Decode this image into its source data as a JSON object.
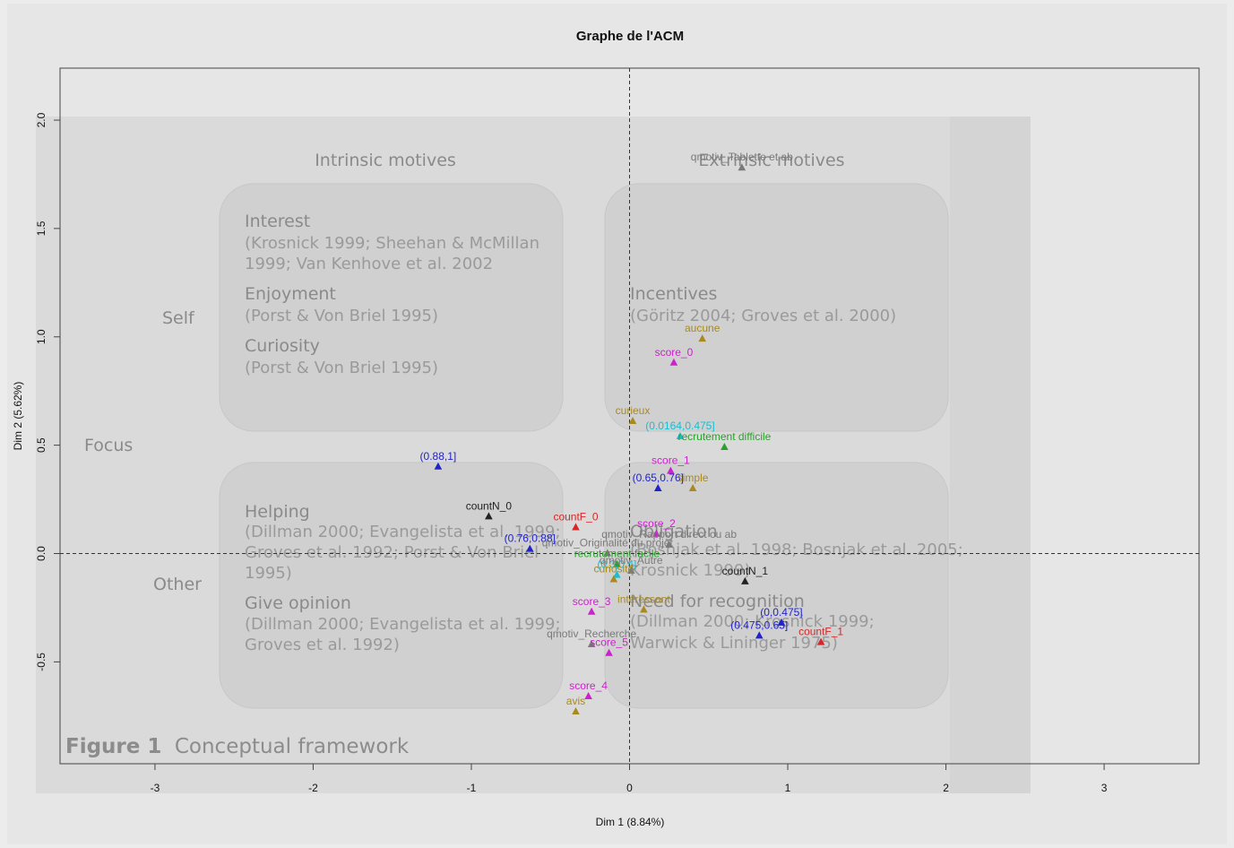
{
  "chart_data": {
    "type": "scatter",
    "title": "Graphe de l'ACM",
    "xlabel": "Dim 1 (8.84%)",
    "ylabel": "Dim 2 (5.62%)",
    "xlim": [
      -3.6,
      3.6
    ],
    "ylim": [
      -0.97,
      2.24
    ],
    "x_ticks": [
      "-3",
      "-2",
      "-1",
      "0",
      "1",
      "2",
      "3"
    ],
    "y_ticks": [
      "-0.5",
      "0.0",
      "0.5",
      "1.0",
      "1.5",
      "2.0"
    ],
    "reference_lines": {
      "x": 0,
      "y": 0,
      "style": "dashed"
    },
    "colors": {
      "black": "#222222",
      "red": "#d62728",
      "green": "#2ca02c",
      "blue": "#2222cc",
      "cyan": "#17becf",
      "magenta": "#cc22cc",
      "olive": "#a88a20",
      "gray": "#7a7a7a"
    },
    "points": [
      {
        "label": "qmotiv_Tablette et ab",
        "x": 0.71,
        "y": 1.78,
        "color": "gray"
      },
      {
        "label": "aucune",
        "x": 0.46,
        "y": 0.99,
        "color": "olive"
      },
      {
        "label": "score_0",
        "x": 0.28,
        "y": 0.88,
        "color": "magenta"
      },
      {
        "label": "curieux",
        "x": 0.02,
        "y": 0.61,
        "color": "olive"
      },
      {
        "label": "(0.0164,0.475]",
        "x": 0.32,
        "y": 0.54,
        "color": "cyan"
      },
      {
        "label": "recrutement difficile",
        "x": 0.6,
        "y": 0.49,
        "color": "green"
      },
      {
        "label": "(0.88,1]",
        "x": -1.21,
        "y": 0.4,
        "color": "blue"
      },
      {
        "label": "score_1",
        "x": 0.26,
        "y": 0.38,
        "color": "magenta"
      },
      {
        "label": "(0.65,0.76]",
        "x": 0.18,
        "y": 0.3,
        "color": "blue"
      },
      {
        "label": "simple",
        "x": 0.4,
        "y": 0.3,
        "color": "olive"
      },
      {
        "label": "countN_0",
        "x": -0.89,
        "y": 0.17,
        "color": "black"
      },
      {
        "label": "countF_0",
        "x": -0.34,
        "y": 0.12,
        "color": "red"
      },
      {
        "label": "score_2",
        "x": 0.17,
        "y": 0.09,
        "color": "magenta"
      },
      {
        "label": "qmotiv_Rapport direct ou ab",
        "x": 0.25,
        "y": 0.04,
        "color": "gray"
      },
      {
        "label": "(0.76,0.88]",
        "x": -0.63,
        "y": 0.02,
        "color": "blue"
      },
      {
        "label": "qmotiv_Originalité du projet",
        "x": -0.14,
        "y": 0.0,
        "color": "gray"
      },
      {
        "label": "recrutement facile",
        "x": -0.08,
        "y": -0.05,
        "color": "green"
      },
      {
        "label": "(0.3,0.4]",
        "x": -0.08,
        "y": -0.1,
        "color": "cyan"
      },
      {
        "label": "qmotiv_Autre",
        "x": 0.01,
        "y": -0.08,
        "color": "gray"
      },
      {
        "label": "curiosité",
        "x": -0.1,
        "y": -0.12,
        "color": "olive"
      },
      {
        "label": "countN_1",
        "x": 0.73,
        "y": -0.13,
        "color": "black"
      },
      {
        "label": "intéressant",
        "x": 0.09,
        "y": -0.26,
        "color": "olive"
      },
      {
        "label": "score_3",
        "x": -0.24,
        "y": -0.27,
        "color": "magenta"
      },
      {
        "label": "(0,0.475]",
        "x": 0.96,
        "y": -0.32,
        "color": "blue"
      },
      {
        "label": "(0.475,0.65]",
        "x": 0.82,
        "y": -0.38,
        "color": "blue"
      },
      {
        "label": "countF_1",
        "x": 1.21,
        "y": -0.41,
        "color": "red"
      },
      {
        "label": "qmotiv_Recherche",
        "x": -0.24,
        "y": -0.42,
        "color": "gray"
      },
      {
        "label": "score_5",
        "x": -0.13,
        "y": -0.46,
        "color": "magenta"
      },
      {
        "label": "score_4",
        "x": -0.26,
        "y": -0.66,
        "color": "magenta"
      },
      {
        "label": "avis",
        "x": -0.34,
        "y": -0.73,
        "color": "olive"
      }
    ]
  },
  "background_figure": {
    "headings": [
      "Intrinsic motives",
      "Extrinsic motives"
    ],
    "side_labels": [
      "Self",
      "Focus",
      "Other"
    ],
    "boxes": [
      {
        "entries": [
          {
            "title": "Interest",
            "refs": [
              "(Krosnick 1999; Sheehan & McMillan",
              "1999; Van Kenhove et al. 2002"
            ]
          },
          {
            "title": "Enjoyment",
            "refs": [
              "(Porst & Von Briel 1995)"
            ]
          },
          {
            "title": "Curiosity",
            "refs": [
              "(Porst & Von Briel 1995)"
            ]
          }
        ]
      },
      {
        "entries": [
          {
            "title": "Incentives",
            "refs": [
              "(Göritz 2004; Groves et al. 2000)"
            ]
          }
        ]
      },
      {
        "entries": [
          {
            "title": "Helping",
            "refs": [
              "(Dillman 2000; Evangelista et al. 1999;",
              "Groves et al. 1992; Porst & Von Briel",
              "1995)"
            ]
          },
          {
            "title": "Give opinion",
            "refs": [
              "(Dillman 2000; Evangelista et al. 1999;",
              "Groves et al. 1992)"
            ]
          }
        ]
      },
      {
        "entries": [
          {
            "title": "Obligation",
            "refs": [
              "(Bosnjak et al. 1998; Bosnjak et al. 2005;",
              "Krosnick 1999)"
            ]
          },
          {
            "title": "Need for recognition",
            "refs": [
              "(Dillman 2000; Krosnick 1999;",
              "Warwick & Lininger 1975)"
            ]
          }
        ]
      }
    ],
    "figure_caption_number": "Figure 1",
    "figure_caption_text": "Conceptual framework"
  }
}
